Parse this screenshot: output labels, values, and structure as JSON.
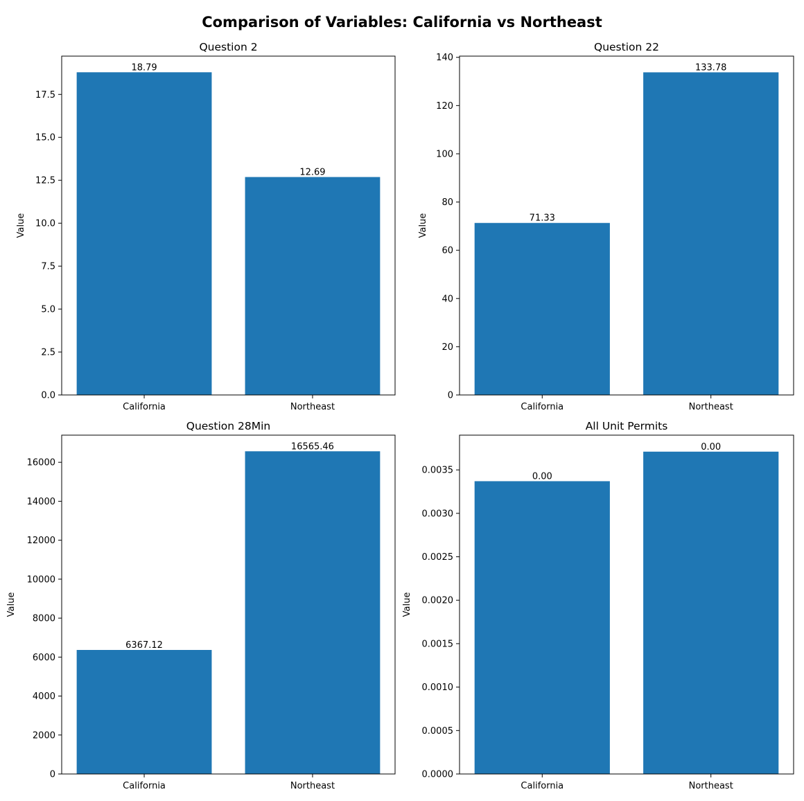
{
  "figure": {
    "title": "Comparison of Variables: California vs Northeast"
  },
  "colors": {
    "bar": "#1f77b4",
    "axis": "#000000",
    "background": "#ffffff"
  },
  "chart_data": [
    {
      "type": "bar",
      "title": "Question 2",
      "ylabel": "Value",
      "xlabel": "",
      "categories": [
        "California",
        "Northeast"
      ],
      "values": [
        18.79,
        12.69
      ],
      "value_labels": [
        "18.79",
        "12.69"
      ],
      "ylim": [
        0,
        19.73
      ],
      "yticks": [
        0.0,
        2.5,
        5.0,
        7.5,
        10.0,
        12.5,
        15.0,
        17.5
      ],
      "ytick_labels": [
        "0.0",
        "2.5",
        "5.0",
        "7.5",
        "10.0",
        "12.5",
        "15.0",
        "17.5"
      ],
      "grid": false,
      "legend": "none"
    },
    {
      "type": "bar",
      "title": "Question 22",
      "ylabel": "Value",
      "xlabel": "",
      "categories": [
        "California",
        "Northeast"
      ],
      "values": [
        71.33,
        133.78
      ],
      "value_labels": [
        "71.33",
        "133.78"
      ],
      "ylim": [
        0,
        140.5
      ],
      "yticks": [
        0,
        20,
        40,
        60,
        80,
        100,
        120,
        140
      ],
      "ytick_labels": [
        "0",
        "20",
        "40",
        "60",
        "80",
        "100",
        "120",
        "140"
      ],
      "grid": false,
      "legend": "none"
    },
    {
      "type": "bar",
      "title": "Question 28Min",
      "ylabel": "Value",
      "xlabel": "",
      "categories": [
        "California",
        "Northeast"
      ],
      "values": [
        6367.12,
        16565.46
      ],
      "value_labels": [
        "6367.12",
        "16565.46"
      ],
      "ylim": [
        0,
        17394
      ],
      "yticks": [
        0,
        2000,
        4000,
        6000,
        8000,
        10000,
        12000,
        14000,
        16000
      ],
      "ytick_labels": [
        "0",
        "2000",
        "4000",
        "6000",
        "8000",
        "10000",
        "12000",
        "14000",
        "16000"
      ],
      "grid": false,
      "legend": "none"
    },
    {
      "type": "bar",
      "title": "All Unit Permits",
      "ylabel": "Value",
      "xlabel": "",
      "categories": [
        "California",
        "Northeast"
      ],
      "values": [
        0.00337,
        0.00371
      ],
      "value_labels": [
        "0.00",
        "0.00"
      ],
      "ylim": [
        0,
        0.0039
      ],
      "yticks": [
        0.0,
        0.0005,
        0.001,
        0.0015,
        0.002,
        0.0025,
        0.003,
        0.0035
      ],
      "ytick_labels": [
        "0.0000",
        "0.0005",
        "0.0010",
        "0.0015",
        "0.0020",
        "0.0025",
        "0.0030",
        "0.0035"
      ],
      "grid": false,
      "legend": "none"
    }
  ]
}
